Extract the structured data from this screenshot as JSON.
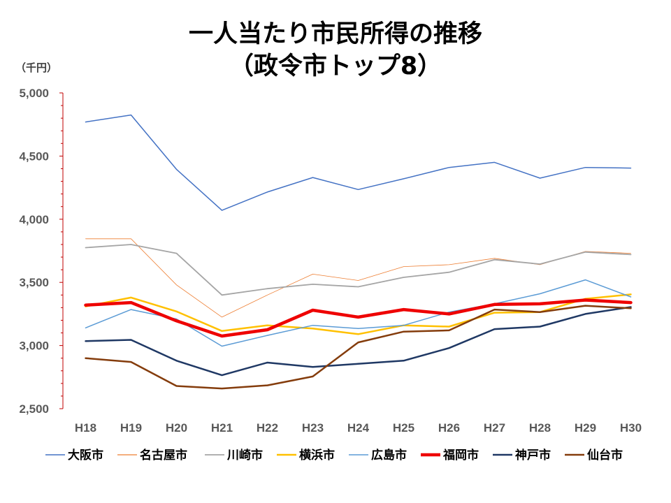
{
  "chart_data": {
    "type": "line",
    "title": "一人当たり市民所得の推移",
    "subtitle": "（政令市トップ8）",
    "unit_label": "（千円）",
    "categories": [
      "H18",
      "H19",
      "H20",
      "H21",
      "H22",
      "H23",
      "H24",
      "H25",
      "H26",
      "H27",
      "H28",
      "H29",
      "H30"
    ],
    "ylim": [
      2500,
      5000
    ],
    "yticks": [
      2500,
      3000,
      3500,
      4000,
      4500,
      5000
    ],
    "ytick_labels": [
      "2,500",
      "3,000",
      "3,500",
      "4,000",
      "4,500",
      "5,000"
    ],
    "grid": false,
    "legend_position": "bottom",
    "series": [
      {
        "name": "大阪市",
        "color": "#4472C4",
        "width": 1.5,
        "values": [
          4770,
          4825,
          4395,
          4070,
          4215,
          4330,
          4235,
          4320,
          4410,
          4450,
          4325,
          4410,
          4405
        ]
      },
      {
        "name": "名古屋市",
        "color": "#ED7D31",
        "width": 0.8,
        "values": [
          3845,
          3845,
          3480,
          3225,
          3400,
          3565,
          3515,
          3625,
          3640,
          3690,
          3640,
          3745,
          3730
        ]
      },
      {
        "name": "川崎市",
        "color": "#A5A5A5",
        "width": 1.8,
        "values": [
          3775,
          3800,
          3730,
          3400,
          3450,
          3485,
          3465,
          3540,
          3580,
          3680,
          3645,
          3740,
          3720
        ]
      },
      {
        "name": "横浜市",
        "color": "#FFC000",
        "width": 2.5,
        "values": [
          3310,
          3380,
          3270,
          3115,
          3160,
          3135,
          3090,
          3160,
          3150,
          3260,
          3265,
          3370,
          3405
        ]
      },
      {
        "name": "広島市",
        "color": "#5B9BD5",
        "width": 1.5,
        "values": [
          3140,
          3285,
          3210,
          2995,
          3080,
          3160,
          3135,
          3160,
          3265,
          3330,
          3410,
          3520,
          3385
        ]
      },
      {
        "name": "福岡市",
        "color": "#EE0000",
        "width": 4.5,
        "values": [
          3320,
          3340,
          3195,
          3075,
          3125,
          3280,
          3225,
          3285,
          3250,
          3325,
          3330,
          3360,
          3340
        ]
      },
      {
        "name": "神戸市",
        "color": "#1F3864",
        "width": 2.5,
        "values": [
          3035,
          3045,
          2880,
          2765,
          2865,
          2830,
          2855,
          2880,
          2980,
          3130,
          3150,
          3250,
          3305
        ]
      },
      {
        "name": "仙台市",
        "color": "#843C0C",
        "width": 2.5,
        "values": [
          2900,
          2870,
          2680,
          2660,
          2685,
          2755,
          3025,
          3110,
          3120,
          3285,
          3265,
          3315,
          3295
        ]
      }
    ]
  }
}
